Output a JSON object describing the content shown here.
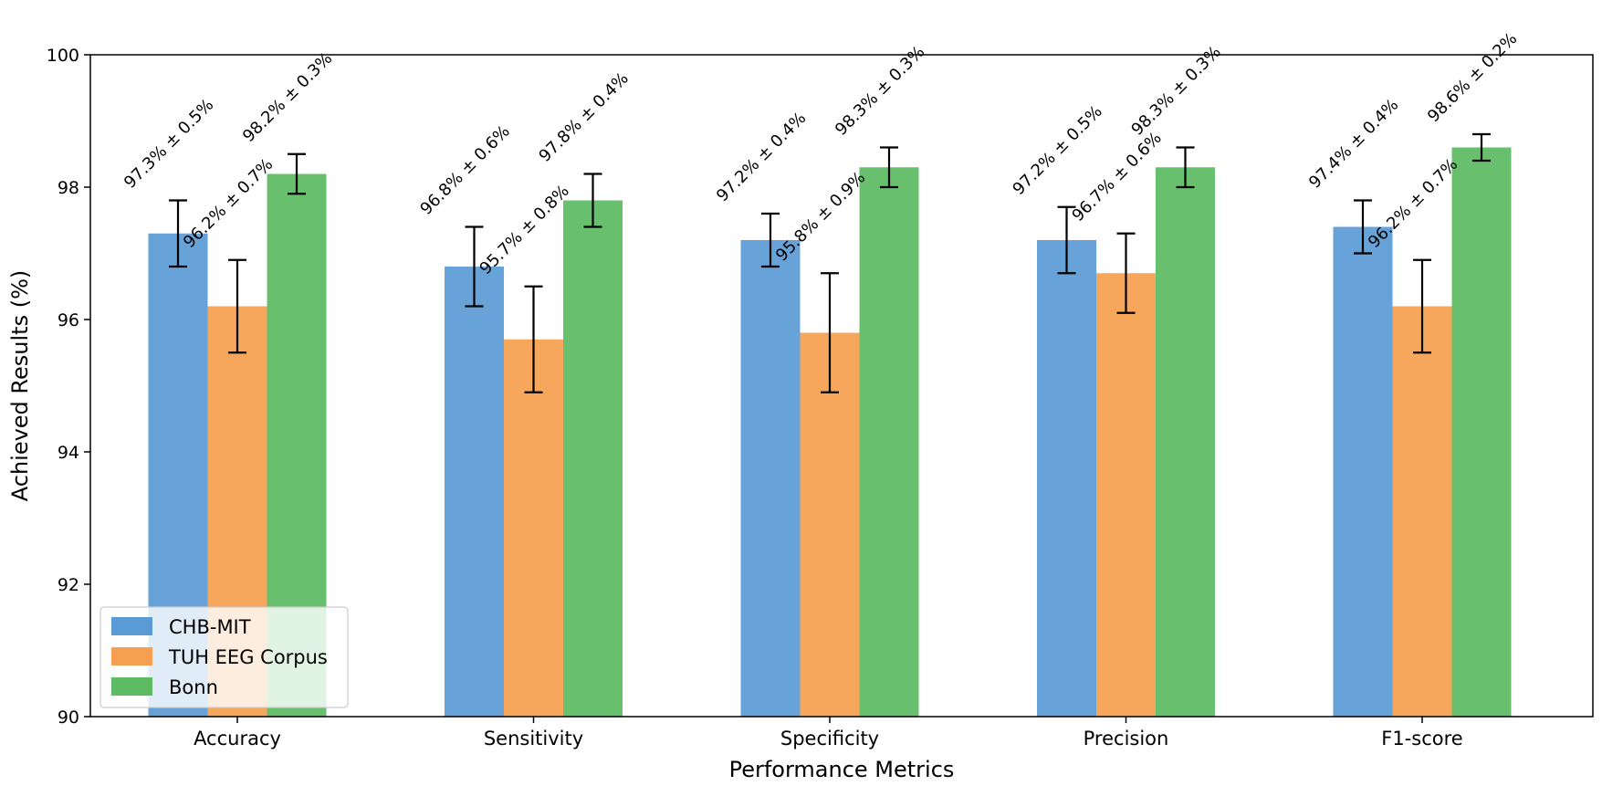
{
  "chart_data": {
    "type": "bar",
    "title": "",
    "xlabel": "Performance Metrics",
    "ylabel": "Achieved Results (%)",
    "ylim": [
      90,
      100
    ],
    "yticks": [
      "90",
      "92",
      "94",
      "96",
      "98",
      "100"
    ],
    "grid": false,
    "legend_position": "bottom-left",
    "categories": [
      "Accuracy",
      "Sensitivity",
      "Specificity",
      "Precision",
      "F1-score"
    ],
    "series": [
      {
        "name": "CHB-MIT",
        "color": "#5b9bd5",
        "values": [
          97.3,
          96.8,
          97.2,
          97.2,
          97.4
        ],
        "errors": [
          0.5,
          0.6,
          0.4,
          0.5,
          0.4
        ],
        "labels": [
          "97.3% ± 0.5%",
          "96.8% ± 0.6%",
          "97.2% ± 0.4%",
          "97.2% ± 0.5%",
          "97.4% ± 0.4%"
        ]
      },
      {
        "name": "TUH EEG Corpus",
        "color": "#f5a050",
        "values": [
          96.2,
          95.7,
          95.8,
          96.7,
          96.2
        ],
        "errors": [
          0.7,
          0.8,
          0.9,
          0.6,
          0.7
        ],
        "labels": [
          "96.2% ± 0.7%",
          "95.7% ± 0.8%",
          "95.8% ± 0.9%",
          "96.7% ± 0.6%",
          "96.2% ± 0.7%"
        ]
      },
      {
        "name": "Bonn",
        "color": "#5dbb63",
        "values": [
          98.2,
          97.8,
          98.3,
          98.3,
          98.6
        ],
        "errors": [
          0.3,
          0.4,
          0.3,
          0.3,
          0.2
        ],
        "labels": [
          "98.2% ± 0.3%",
          "97.8% ± 0.4%",
          "98.3% ± 0.3%",
          "98.3% ± 0.3%",
          "98.6% ± 0.2%"
        ]
      }
    ]
  }
}
